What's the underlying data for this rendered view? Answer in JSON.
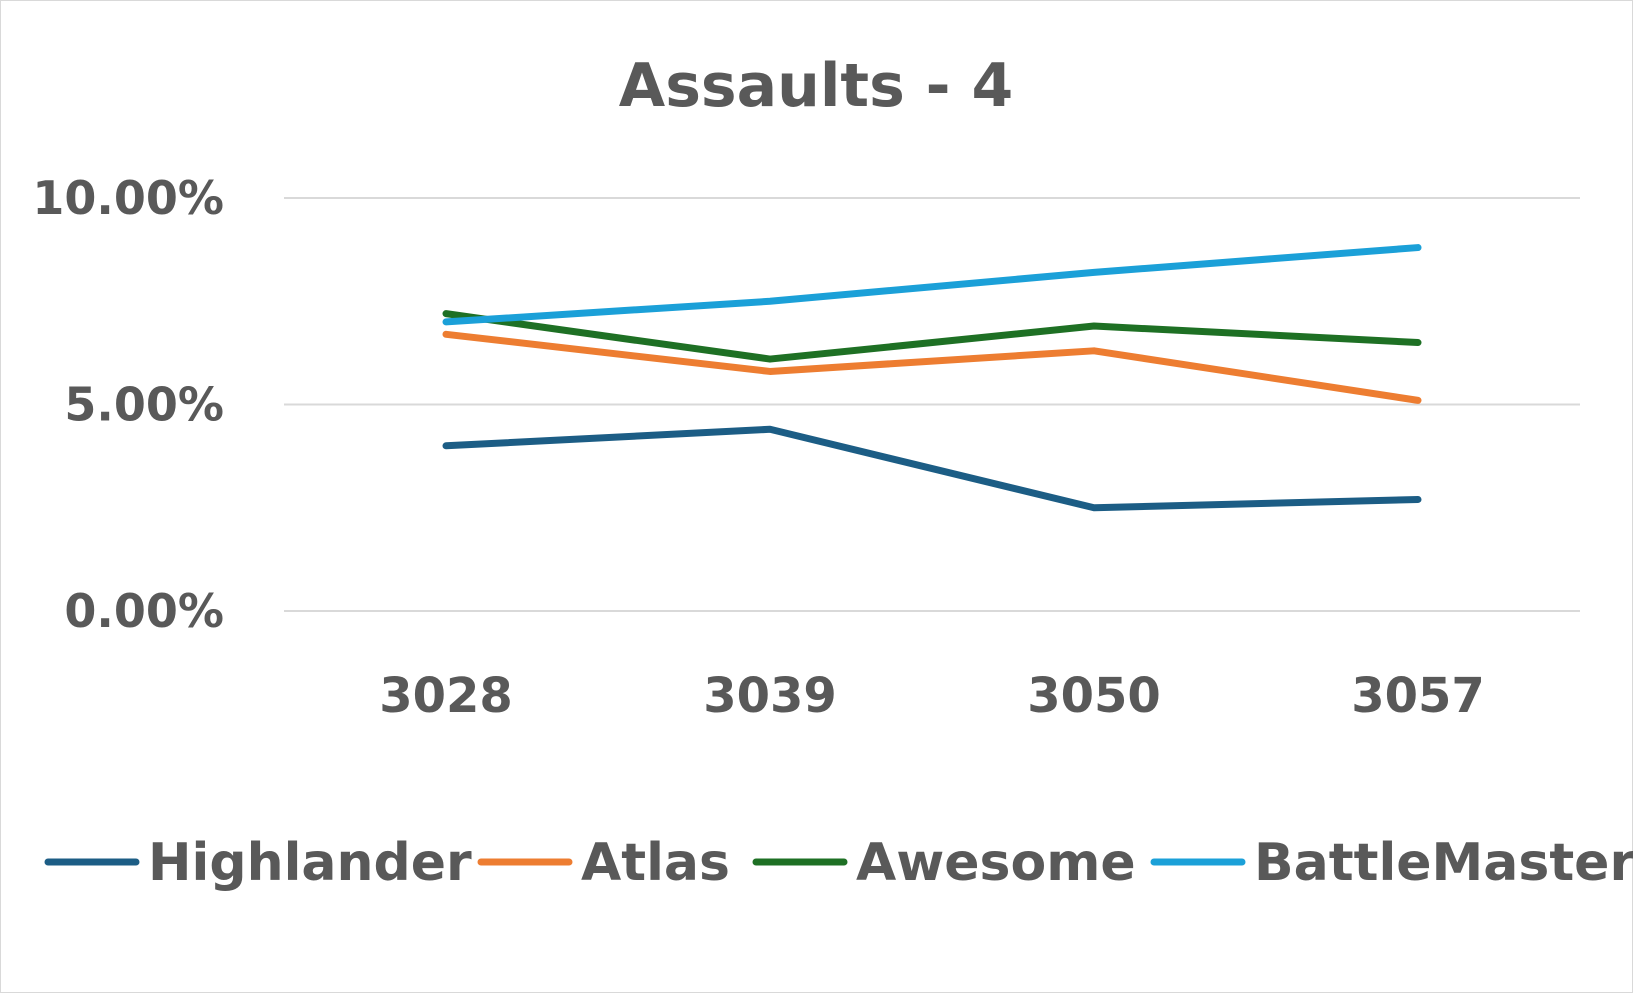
{
  "chart_data": {
    "type": "line",
    "title": "Assaults - 4",
    "xlabel": "",
    "ylabel": "",
    "categories": [
      "3028",
      "3039",
      "3050",
      "3057"
    ],
    "ylim": [
      0,
      0.1
    ],
    "yticks": [
      0,
      0.05,
      0.1
    ],
    "ytick_labels": [
      "0.00%",
      "5.00%",
      "10.00%"
    ],
    "grid": true,
    "legend_position": "bottom",
    "series": [
      {
        "name": "Highlander",
        "color": "#1c5d85",
        "values": [
          0.04,
          0.044,
          0.025,
          0.027
        ]
      },
      {
        "name": "Atlas",
        "color": "#ed7d31",
        "values": [
          0.067,
          0.058,
          0.063,
          0.051
        ]
      },
      {
        "name": "Awesome",
        "color": "#1e7024",
        "values": [
          0.072,
          0.061,
          0.069,
          0.065
        ]
      },
      {
        "name": "BattleMaster",
        "color": "#1ba0d8",
        "values": [
          0.07,
          0.075,
          0.082,
          0.088
        ]
      }
    ]
  }
}
